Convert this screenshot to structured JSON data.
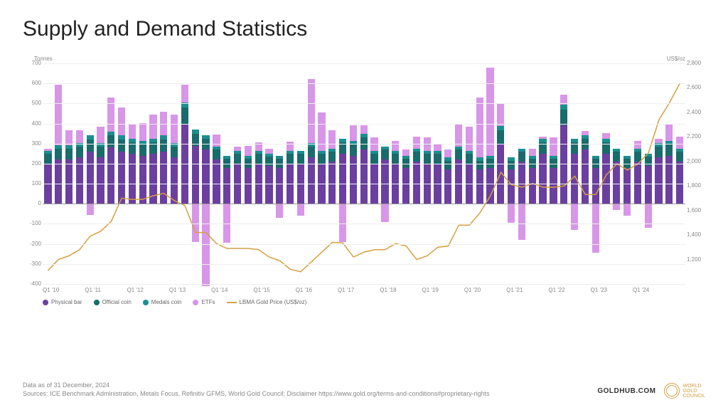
{
  "title": "Supply and Demand Statistics",
  "chart": {
    "type": "stacked-bar-with-line",
    "left_axis_label": "Tonnes",
    "right_axis_label": "US$/oz",
    "ylim_left": [
      -400,
      700
    ],
    "ytick_step_left": 100,
    "ylim_right": [
      1000,
      2800
    ],
    "ytick_step_right": 200,
    "background_color": "#ffffff",
    "grid_color": "#eeeeee",
    "zero_line_color": "#999999",
    "line_color": "#d4a040",
    "line_width": 1.5,
    "bar_width": 0.8,
    "series": {
      "physical_bar": {
        "label": "Physical bar",
        "color": "#6b3fa0"
      },
      "official_coin": {
        "label": "Official coin",
        "color": "#1a6b6b"
      },
      "medals_coin": {
        "label": "Medals coin",
        "color": "#1a8f8f"
      },
      "etfs": {
        "label": "ETFs",
        "color": "#d896e8"
      },
      "line": {
        "label": "LBMA Gold Price (US$/oz)",
        "color": "#d4a040"
      }
    },
    "x_labels": [
      "Q1 '10",
      "Q1 '11",
      "Q1 '12",
      "Q1 '13",
      "Q1 '14",
      "Q1 '15",
      "Q1 '16",
      "Q1 '17",
      "Q1 '18",
      "Q1 '19",
      "Q1 '20",
      "Q1 '21",
      "Q1 '22",
      "Q1 '23",
      "Q1 '24"
    ],
    "quarters": [
      {
        "pb": 200,
        "oc": 50,
        "mc": 15,
        "etf": 8,
        "price": 1110
      },
      {
        "pb": 220,
        "oc": 55,
        "mc": 18,
        "etf": 300,
        "price": 1200
      },
      {
        "pb": 220,
        "oc": 55,
        "mc": 18,
        "etf": 75,
        "price": 1230
      },
      {
        "pb": 230,
        "oc": 55,
        "mc": 18,
        "etf": 65,
        "price": 1280
      },
      {
        "pb": 260,
        "oc": 60,
        "mc": 20,
        "etf": -55,
        "price": 1390
      },
      {
        "pb": 230,
        "oc": 55,
        "mc": 18,
        "etf": 80,
        "price": 1430
      },
      {
        "pb": 280,
        "oc": 60,
        "mc": 20,
        "etf": 170,
        "price": 1510
      },
      {
        "pb": 260,
        "oc": 60,
        "mc": 20,
        "etf": 140,
        "price": 1700
      },
      {
        "pb": 250,
        "oc": 55,
        "mc": 18,
        "etf": 75,
        "price": 1690
      },
      {
        "pb": 240,
        "oc": 55,
        "mc": 18,
        "etf": 90,
        "price": 1690
      },
      {
        "pb": 250,
        "oc": 55,
        "mc": 18,
        "etf": 120,
        "price": 1720
      },
      {
        "pb": 260,
        "oc": 60,
        "mc": 20,
        "etf": 120,
        "price": 1740
      },
      {
        "pb": 230,
        "oc": 55,
        "mc": 18,
        "etf": 140,
        "price": 1680
      },
      {
        "pb": 400,
        "oc": 80,
        "mc": 25,
        "etf": 90,
        "price": 1640
      },
      {
        "pb": 290,
        "oc": 60,
        "mc": 20,
        "etf": -190,
        "price": 1420
      },
      {
        "pb": 270,
        "oc": 55,
        "mc": 18,
        "etf": -410,
        "price": 1420
      },
      {
        "pb": 220,
        "oc": 50,
        "mc": 15,
        "etf": 60,
        "price": 1330
      },
      {
        "pb": 180,
        "oc": 45,
        "mc": 15,
        "etf": -195,
        "price": 1290
      },
      {
        "pb": 200,
        "oc": 50,
        "mc": 15,
        "etf": 20,
        "price": 1290
      },
      {
        "pb": 180,
        "oc": 45,
        "mc": 15,
        "etf": 50,
        "price": 1290
      },
      {
        "pb": 200,
        "oc": 50,
        "mc": 15,
        "etf": 40,
        "price": 1280
      },
      {
        "pb": 190,
        "oc": 45,
        "mc": 15,
        "etf": 25,
        "price": 1220
      },
      {
        "pb": 180,
        "oc": 45,
        "mc": 15,
        "etf": -70,
        "price": 1190
      },
      {
        "pb": 200,
        "oc": 50,
        "mc": 15,
        "etf": 45,
        "price": 1120
      },
      {
        "pb": 200,
        "oc": 50,
        "mc": 15,
        "etf": -60,
        "price": 1100
      },
      {
        "pb": 230,
        "oc": 55,
        "mc": 18,
        "etf": 320,
        "price": 1180
      },
      {
        "pb": 200,
        "oc": 50,
        "mc": 15,
        "etf": 190,
        "price": 1260
      },
      {
        "pb": 210,
        "oc": 50,
        "mc": 15,
        "etf": 90,
        "price": 1340
      },
      {
        "pb": 250,
        "oc": 55,
        "mc": 18,
        "etf": -190,
        "price": 1335
      },
      {
        "pb": 240,
        "oc": 55,
        "mc": 18,
        "etf": 80,
        "price": 1220
      },
      {
        "pb": 270,
        "oc": 60,
        "mc": 20,
        "etf": 40,
        "price": 1260
      },
      {
        "pb": 200,
        "oc": 50,
        "mc": 15,
        "etf": 65,
        "price": 1280
      },
      {
        "pb": 220,
        "oc": 50,
        "mc": 15,
        "etf": -90,
        "price": 1280
      },
      {
        "pb": 200,
        "oc": 50,
        "mc": 15,
        "etf": 50,
        "price": 1330
      },
      {
        "pb": 180,
        "oc": 45,
        "mc": 15,
        "etf": 30,
        "price": 1310
      },
      {
        "pb": 210,
        "oc": 50,
        "mc": 15,
        "etf": 60,
        "price": 1200
      },
      {
        "pb": 200,
        "oc": 50,
        "mc": 15,
        "etf": 65,
        "price": 1230
      },
      {
        "pb": 200,
        "oc": 50,
        "mc": 15,
        "etf": 30,
        "price": 1300
      },
      {
        "pb": 170,
        "oc": 45,
        "mc": 15,
        "etf": 40,
        "price": 1310
      },
      {
        "pb": 220,
        "oc": 50,
        "mc": 15,
        "etf": 110,
        "price": 1480
      },
      {
        "pb": 200,
        "oc": 50,
        "mc": 15,
        "etf": 120,
        "price": 1480
      },
      {
        "pb": 170,
        "oc": 45,
        "mc": 15,
        "etf": 300,
        "price": 1580
      },
      {
        "pb": 180,
        "oc": 45,
        "mc": 15,
        "etf": 440,
        "price": 1720
      },
      {
        "pb": 300,
        "oc": 65,
        "mc": 22,
        "etf": 110,
        "price": 1910
      },
      {
        "pb": 170,
        "oc": 45,
        "mc": 15,
        "etf": -95,
        "price": 1810
      },
      {
        "pb": 210,
        "oc": 50,
        "mc": 15,
        "etf": -180,
        "price": 1790
      },
      {
        "pb": 180,
        "oc": 45,
        "mc": 15,
        "etf": 35,
        "price": 1820
      },
      {
        "pb": 250,
        "oc": 55,
        "mc": 18,
        "etf": 10,
        "price": 1790
      },
      {
        "pb": 180,
        "oc": 45,
        "mc": 15,
        "etf": 90,
        "price": 1790
      },
      {
        "pb": 390,
        "oc": 80,
        "mc": 25,
        "etf": 50,
        "price": 1800
      },
      {
        "pb": 250,
        "oc": 55,
        "mc": 18,
        "etf": -130,
        "price": 1880
      },
      {
        "pb": 270,
        "oc": 55,
        "mc": 18,
        "etf": 20,
        "price": 1730
      },
      {
        "pb": 180,
        "oc": 45,
        "mc": 15,
        "etf": -245,
        "price": 1730
      },
      {
        "pb": 250,
        "oc": 55,
        "mc": 18,
        "etf": 30,
        "price": 1890
      },
      {
        "pb": 210,
        "oc": 50,
        "mc": 15,
        "etf": -30,
        "price": 1980
      },
      {
        "pb": 180,
        "oc": 45,
        "mc": 15,
        "etf": -60,
        "price": 1930
      },
      {
        "pb": 210,
        "oc": 50,
        "mc": 15,
        "etf": 40,
        "price": 1980
      },
      {
        "pb": 190,
        "oc": 45,
        "mc": 15,
        "etf": -120,
        "price": 2070
      },
      {
        "pb": 230,
        "oc": 55,
        "mc": 18,
        "etf": 20,
        "price": 2340
      },
      {
        "pb": 240,
        "oc": 55,
        "mc": 18,
        "etf": 85,
        "price": 2480
      },
      {
        "pb": 210,
        "oc": 50,
        "mc": 15,
        "etf": 60,
        "price": 2640
      }
    ],
    "title_fontsize": 30,
    "axis_fontsize": 8,
    "legend_fontsize": 8,
    "footer_fontsize": 9
  },
  "footer": {
    "asof": "Data as of 31 December, 2024",
    "sources": "Sources: ICE Benchmark Administration, Metals Focus, Refinitiv GFMS, World Gold Council; Disclaimer https://www.gold.org/terms-and-conditions#proprietary-rights",
    "goldhub": "GOLDHUB.COM",
    "wgc": "WORLD GOLD COUNCIL"
  }
}
